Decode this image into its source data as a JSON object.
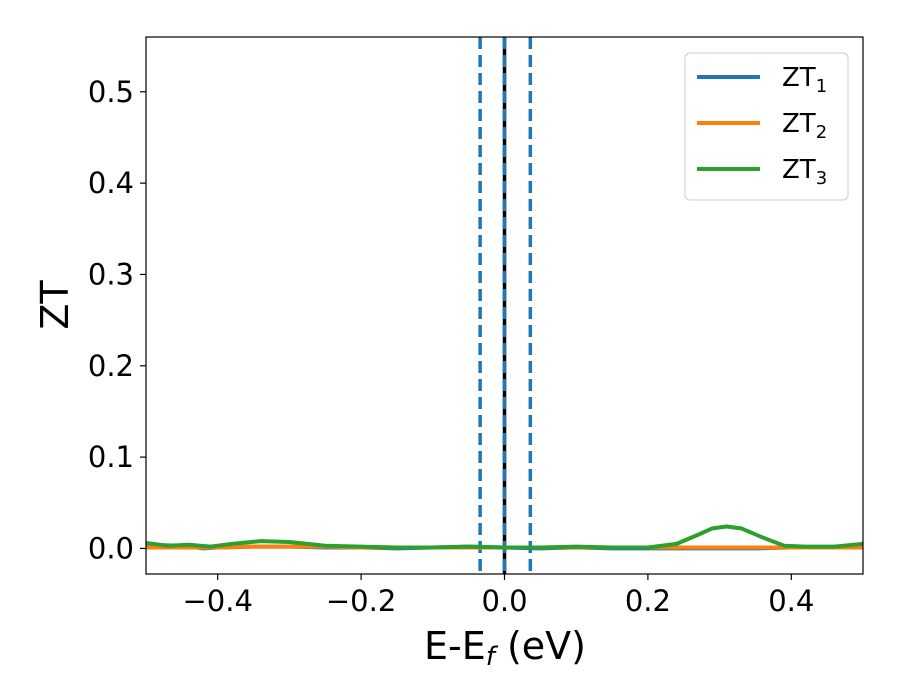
{
  "chart_data": {
    "type": "line",
    "title": "",
    "xlabel": {
      "main": "E-E",
      "sub": "f",
      "suffix": " (eV)"
    },
    "ylabel": "ZT",
    "xlim": [
      -0.5,
      0.5
    ],
    "ylim": [
      -0.028,
      0.56
    ],
    "xticks": [
      -0.4,
      -0.2,
      0.0,
      0.2,
      0.4
    ],
    "xtick_labels": [
      "−0.4",
      "−0.2",
      "0.0",
      "0.2",
      "0.4"
    ],
    "yticks": [
      0.0,
      0.1,
      0.2,
      0.3,
      0.4,
      0.5
    ],
    "ytick_labels": [
      "0.0",
      "0.1",
      "0.2",
      "0.3",
      "0.4",
      "0.5"
    ],
    "grid": false,
    "legend_position": "top-right",
    "vlines": [
      {
        "x": -0.034,
        "style": "dashed",
        "color": "#1f77b4"
      },
      {
        "x": 0.0,
        "style": "solid",
        "color": "#000000"
      },
      {
        "x": 0.0,
        "style": "dashed",
        "color": "#1f77b4"
      },
      {
        "x": 0.036,
        "style": "dashed",
        "color": "#1f77b4"
      }
    ],
    "series": [
      {
        "name": "ZT",
        "sub": "1",
        "color": "#1f77b4",
        "x": [
          -0.5,
          -0.45,
          -0.42,
          -0.4,
          -0.35,
          -0.3,
          -0.25,
          -0.2,
          -0.15,
          -0.1,
          -0.05,
          0.0,
          0.05,
          0.1,
          0.15,
          0.2,
          0.25,
          0.3,
          0.35,
          0.4,
          0.45,
          0.5
        ],
        "y": [
          0.004,
          0.003,
          0.0,
          0.001,
          0.002,
          0.002,
          0.001,
          0.001,
          0.0,
          0.001,
          0.002,
          0.001,
          0.0,
          0.001,
          0.0,
          0.0,
          0.0,
          0.0,
          0.0,
          0.001,
          0.001,
          0.002
        ]
      },
      {
        "name": "ZT",
        "sub": "2",
        "color": "#ff7f0e",
        "x": [
          -0.5,
          -0.45,
          -0.4,
          -0.35,
          -0.3,
          -0.25,
          -0.2,
          -0.15,
          -0.1,
          -0.05,
          0.0,
          0.05,
          0.1,
          0.15,
          0.2,
          0.25,
          0.3,
          0.35,
          0.4,
          0.45,
          0.5
        ],
        "y": [
          0.001,
          0.001,
          0.001,
          0.002,
          0.002,
          0.002,
          0.001,
          0.001,
          0.001,
          0.001,
          0.001,
          0.001,
          0.001,
          0.001,
          0.001,
          0.001,
          0.001,
          0.001,
          0.001,
          0.001,
          0.001
        ]
      },
      {
        "name": "ZT",
        "sub": "3",
        "color": "#2ca02c",
        "x": [
          -0.5,
          -0.47,
          -0.44,
          -0.41,
          -0.38,
          -0.34,
          -0.3,
          -0.25,
          -0.2,
          -0.15,
          -0.1,
          -0.05,
          0.0,
          0.05,
          0.1,
          0.15,
          0.2,
          0.24,
          0.27,
          0.29,
          0.31,
          0.33,
          0.36,
          0.39,
          0.42,
          0.46,
          0.5
        ],
        "y": [
          0.006,
          0.003,
          0.004,
          0.002,
          0.005,
          0.008,
          0.007,
          0.003,
          0.002,
          0.001,
          0.001,
          0.002,
          0.001,
          0.001,
          0.002,
          0.001,
          0.001,
          0.005,
          0.015,
          0.022,
          0.024,
          0.022,
          0.012,
          0.003,
          0.002,
          0.002,
          0.005
        ]
      }
    ]
  }
}
